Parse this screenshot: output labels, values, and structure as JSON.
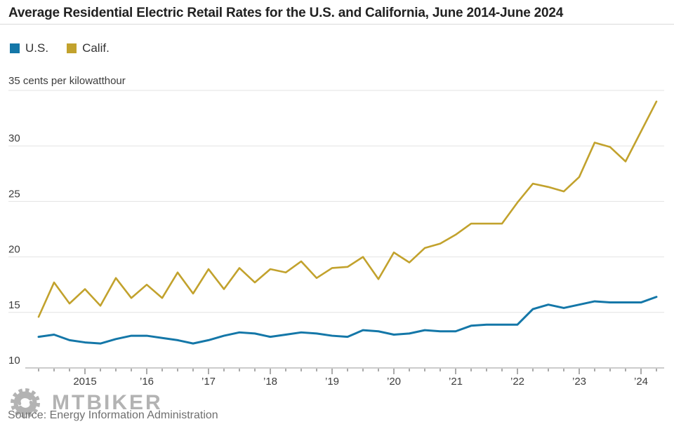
{
  "title": "Average Residential Electric Retail Rates for the U.S. and California, June 2014-June 2024",
  "unit_label": "35 cents per kilowatthour",
  "source": "Source: Energy Information Administration",
  "watermark": "MTBIKER",
  "colors": {
    "us_line": "#1477a8",
    "calif_line": "#c2a22d",
    "gridline": "#e3e3e3",
    "axis_baseline": "#9a9a9a",
    "tick": "#555555",
    "text": "#3c3c3c"
  },
  "chart_data": {
    "type": "line",
    "title": "Average Residential Electric Retail Rates for the U.S. and California, June 2014-June 2024",
    "ylabel": "cents per kilowatthour",
    "ylim": [
      10,
      35
    ],
    "yticks": [
      10,
      15,
      20,
      25,
      30,
      35
    ],
    "grid": "horizontal",
    "legend_position": "top-left",
    "x": [
      "Jun 2014",
      "Sep 2014",
      "Dec 2014",
      "Mar 2015",
      "Jun 2015",
      "Sep 2015",
      "Dec 2015",
      "Mar 2016",
      "Jun 2016",
      "Sep 2016",
      "Dec 2016",
      "Mar 2017",
      "Jun 2017",
      "Sep 2017",
      "Dec 2017",
      "Mar 2018",
      "Jun 2018",
      "Sep 2018",
      "Dec 2018",
      "Mar 2019",
      "Jun 2019",
      "Sep 2019",
      "Dec 2019",
      "Mar 2020",
      "Jun 2020",
      "Sep 2020",
      "Dec 2020",
      "Mar 2021",
      "Jun 2021",
      "Sep 2021",
      "Dec 2021",
      "Mar 2022",
      "Jun 2022",
      "Sep 2022",
      "Dec 2022",
      "Mar 2023",
      "Jun 2023",
      "Sep 2023",
      "Dec 2023",
      "Mar 2024",
      "Jun 2024"
    ],
    "x_year_tick_indices": [
      3,
      7,
      11,
      15,
      19,
      23,
      27,
      31,
      35,
      39
    ],
    "x_year_labels": [
      "2015",
      "’16",
      "’17",
      "’18",
      "’19",
      "’20",
      "’21",
      "’22",
      "’23",
      "’24"
    ],
    "series": [
      {
        "name": "U.S.",
        "color": "#1477a8",
        "width": 3,
        "values": [
          12.8,
          13.0,
          12.5,
          12.3,
          12.2,
          12.6,
          12.9,
          12.9,
          12.7,
          12.5,
          12.2,
          12.5,
          12.9,
          13.2,
          13.1,
          12.8,
          13.0,
          13.2,
          13.1,
          12.9,
          12.8,
          13.4,
          13.3,
          13.0,
          13.1,
          13.4,
          13.3,
          13.3,
          13.8,
          13.9,
          13.9,
          13.9,
          15.3,
          15.7,
          15.4,
          15.7,
          16.0,
          15.9,
          15.9,
          15.9,
          16.4
        ]
      },
      {
        "name": "Calif.",
        "color": "#c2a22d",
        "width": 2.6,
        "values": [
          14.6,
          17.7,
          15.8,
          17.1,
          15.6,
          18.1,
          16.3,
          17.5,
          16.3,
          18.6,
          16.7,
          18.9,
          17.1,
          19.0,
          17.7,
          18.9,
          18.6,
          19.6,
          18.1,
          19.0,
          19.1,
          20.0,
          18.0,
          20.4,
          19.5,
          20.8,
          21.2,
          22.0,
          23.0,
          23.0,
          23.0,
          24.9,
          26.6,
          26.3,
          25.9,
          27.2,
          30.3,
          29.9,
          28.6,
          31.3,
          34.0
        ]
      }
    ]
  }
}
